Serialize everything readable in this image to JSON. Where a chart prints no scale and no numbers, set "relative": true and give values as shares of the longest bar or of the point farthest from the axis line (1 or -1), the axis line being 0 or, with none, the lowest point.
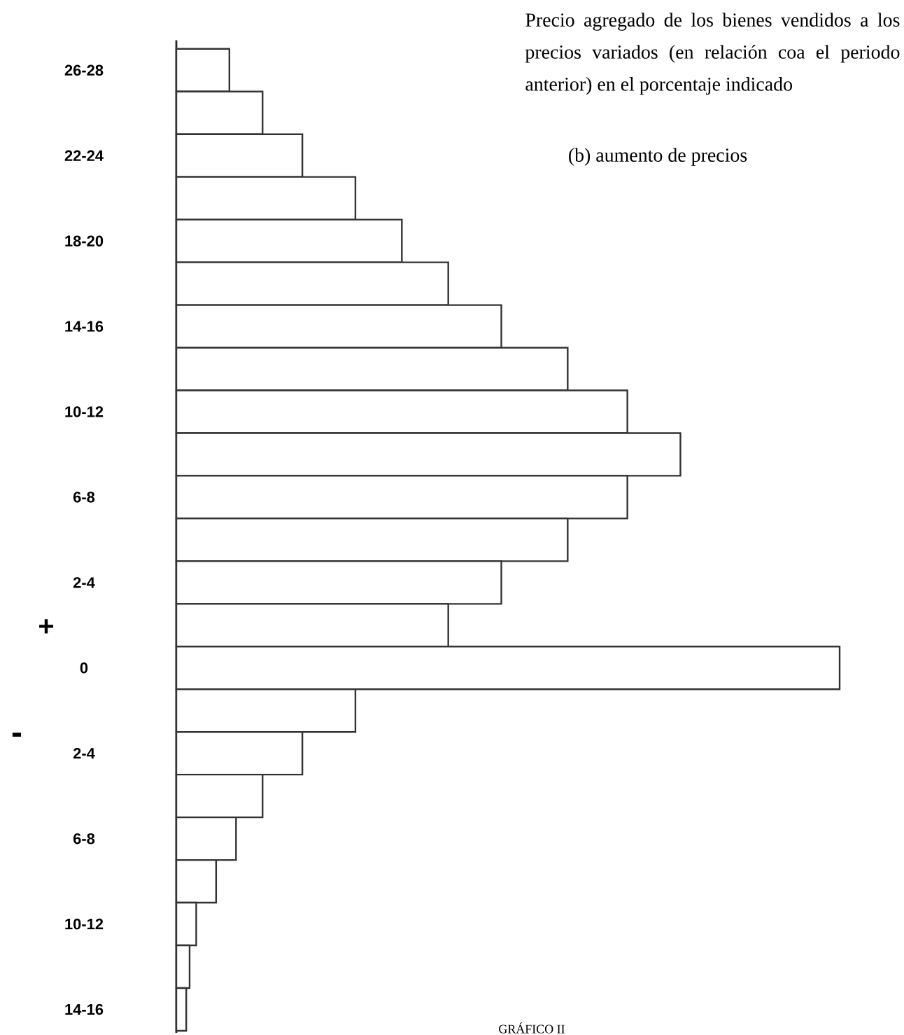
{
  "chart_data": {
    "type": "bar",
    "orientation": "horizontal",
    "relative": true,
    "title": "Precio agregado de los bienes vendidos a los precios variados (en relación coa el periodo anterior) en el porcentaje indicado",
    "subtitle": "(b) aumento de precios",
    "categories": [
      "26-28",
      null,
      "22-24",
      null,
      "18-20",
      null,
      "14-16",
      null,
      "10-12",
      null,
      "6-8",
      null,
      "2-4",
      null,
      "0",
      null,
      "2-4",
      null,
      "6-8",
      null,
      "10-12",
      null,
      "14-16"
    ],
    "values": [
      0.08,
      0.13,
      0.19,
      0.27,
      0.34,
      0.41,
      0.49,
      0.59,
      0.68,
      0.76,
      0.68,
      0.59,
      0.49,
      0.41,
      1,
      0.27,
      0.19,
      0.13,
      0.09,
      0.06,
      0.03,
      0.02,
      0.015
    ],
    "color": "#ffffff",
    "annotations": [
      "+",
      "-",
      "GRÁFICO II"
    ]
  }
}
